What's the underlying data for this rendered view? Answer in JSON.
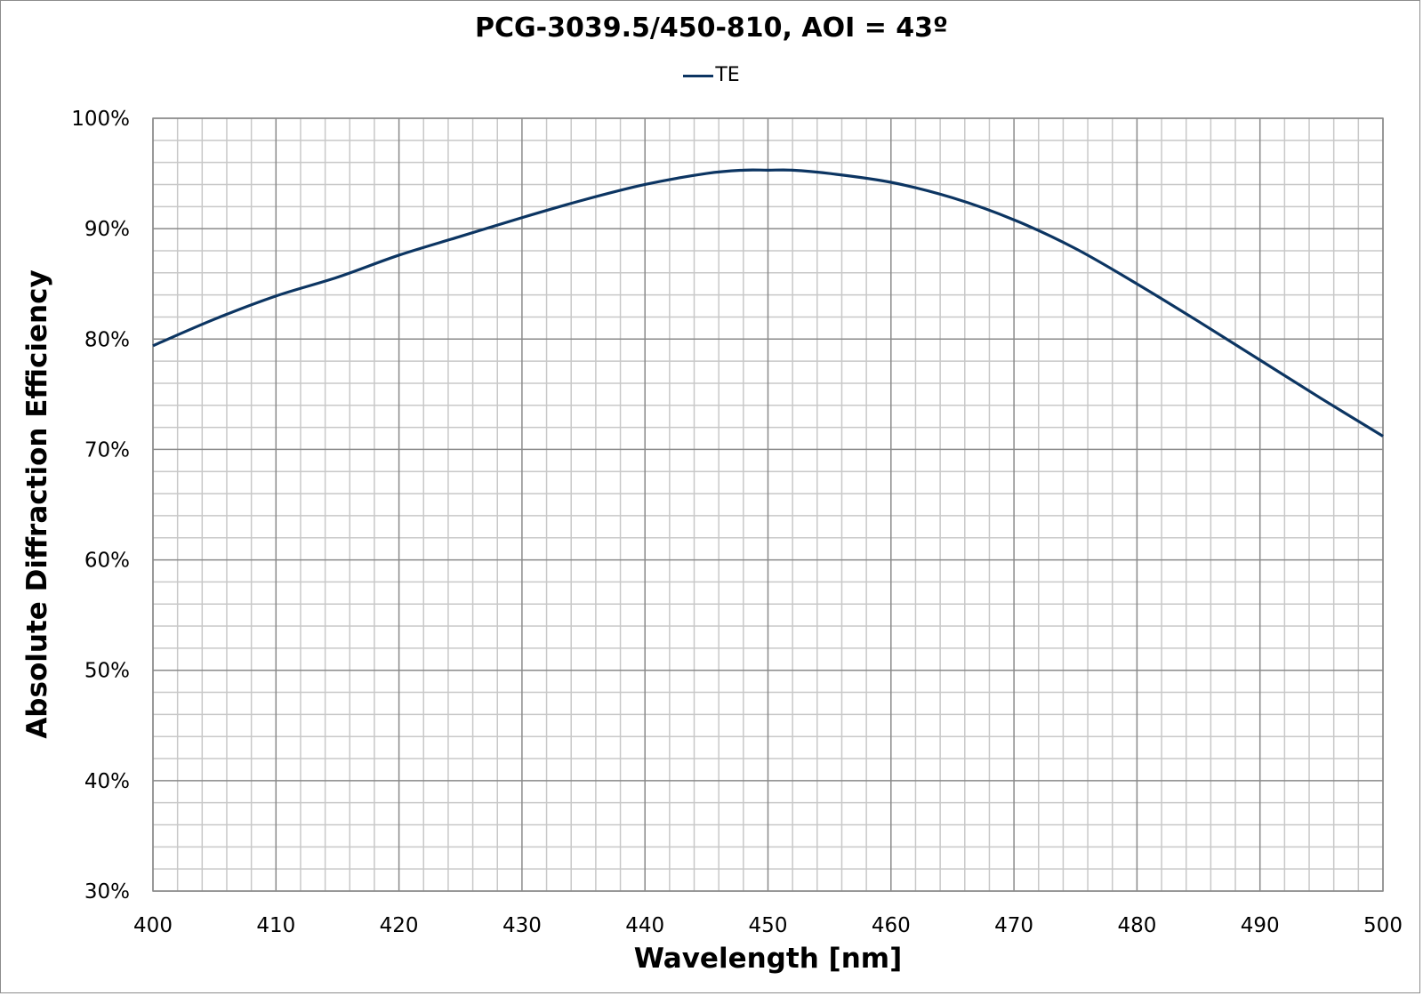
{
  "chart_data": {
    "type": "line",
    "title": "PCG-3039.5/450-810, AOI = 43º",
    "xlabel": "Wavelength [nm]",
    "ylabel": "Absolute Diffraction Efficiency",
    "xlim": [
      400,
      500
    ],
    "ylim": [
      30,
      100
    ],
    "x_ticks": [
      "400",
      "410",
      "420",
      "430",
      "440",
      "450",
      "460",
      "470",
      "480",
      "490",
      "500"
    ],
    "y_ticks": [
      "30%",
      "40%",
      "50%",
      "60%",
      "70%",
      "80%",
      "90%",
      "100%"
    ],
    "grid": true,
    "legend_position": "top",
    "series": [
      {
        "name": "TE",
        "color": "#0c3562",
        "x": [
          400,
          405,
          410,
          415,
          420,
          425,
          430,
          435,
          440,
          445,
          448,
          450,
          452,
          455,
          460,
          465,
          470,
          475,
          480,
          485,
          490,
          495,
          500
        ],
        "y": [
          79.4,
          81.8,
          83.9,
          85.6,
          87.6,
          89.3,
          91.0,
          92.6,
          94.0,
          95.0,
          95.3,
          95.3,
          95.3,
          95.0,
          94.2,
          92.8,
          90.8,
          88.2,
          85.0,
          81.6,
          78.1,
          74.6,
          71.2
        ]
      }
    ]
  }
}
